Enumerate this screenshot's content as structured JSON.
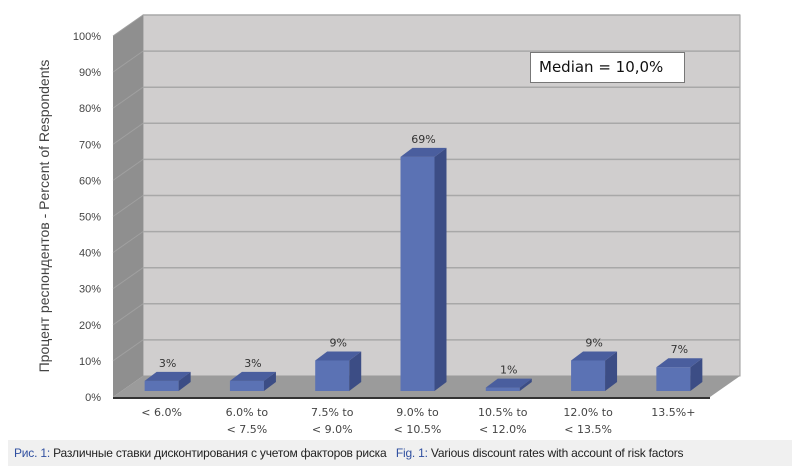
{
  "chart_data": {
    "type": "bar",
    "title": "",
    "ylabel": "Процент респондентов - Percent of Respondents",
    "xlabel": "",
    "ylim": [
      0,
      100
    ],
    "yticks": [
      "0%",
      "10%",
      "20%",
      "30%",
      "40%",
      "50%",
      "60%",
      "70%",
      "80%",
      "90%",
      "100%"
    ],
    "categories": [
      [
        "< 6.0%"
      ],
      [
        "6.0% to",
        "< 7.5%"
      ],
      [
        "7.5% to",
        "< 9.0%"
      ],
      [
        "9.0% to",
        "< 10.5%"
      ],
      [
        "10.5% to",
        "< 12.0%"
      ],
      [
        "12.0% to",
        "< 13.5%"
      ],
      [
        "13.5%+"
      ]
    ],
    "values": [
      3,
      3,
      9,
      69,
      1,
      9,
      7
    ],
    "data_labels": [
      "3%",
      "3%",
      "9%",
      "69%",
      "1%",
      "9%",
      "7%"
    ],
    "annotation": "Median = 10,0%",
    "bar_color": "#5b72b4",
    "grid": true
  },
  "caption": {
    "ru_prefix": "Рис. 1:",
    "ru_text": " Различные ставки дисконтирования с учетом факторов риска",
    "en_prefix": "Fig. 1:",
    "en_text": " Various discount rates with account of risk factors"
  }
}
